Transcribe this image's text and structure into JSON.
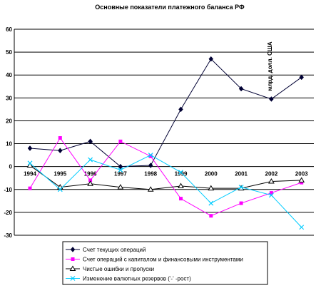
{
  "chart_data": {
    "type": "line",
    "title": "Основные показатели платежного баланса РФ",
    "ylabel": "млрд. долл. США",
    "xlabel": "",
    "categories": [
      "1994",
      "1995",
      "1996",
      "1997",
      "1998",
      "1999",
      "2000",
      "2001",
      "2002",
      "2003"
    ],
    "ylim": [
      -30,
      60
    ],
    "yticks": [
      60,
      50,
      40,
      30,
      20,
      10,
      0,
      -10,
      -20,
      -30
    ],
    "grid": true,
    "legend_position": "bottom",
    "series": [
      {
        "name": "Счет текущих операций",
        "color": "#000033",
        "marker": "diamond",
        "values": [
          8,
          7,
          11,
          0,
          0.5,
          25,
          47,
          34,
          29.5,
          39
        ]
      },
      {
        "name": "Счет операций с капиталом и финансовыми инструментами",
        "color": "#ff00ff",
        "marker": "square",
        "values": [
          -9.5,
          12.5,
          -6,
          11,
          4.5,
          -14,
          -21.5,
          -16,
          -11.5,
          -7
        ]
      },
      {
        "name": "Чистые ошибки и пропуски",
        "color": "#000000",
        "marker": "triangle",
        "values": [
          0.5,
          -9,
          -7.5,
          -9,
          -10,
          -8.5,
          -9.5,
          -9.5,
          -6.5,
          -6
        ]
      },
      {
        "name": "Изменение валютных резервов ('-' -рост)",
        "color": "#00ccff",
        "marker": "x",
        "values": [
          1.5,
          -10,
          3,
          -1.5,
          5,
          -2.5,
          -16,
          -9,
          -12.5,
          -26.5
        ]
      }
    ]
  }
}
